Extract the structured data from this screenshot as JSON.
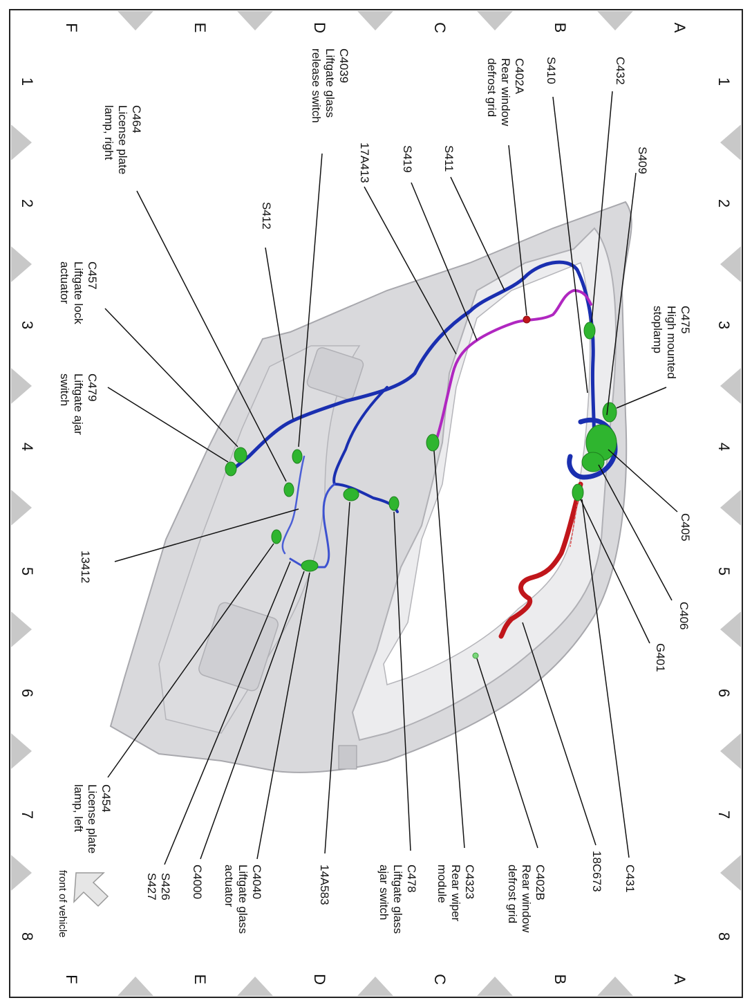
{
  "grid": {
    "columns": [
      "1",
      "2",
      "3",
      "4",
      "5",
      "6",
      "7",
      "8"
    ],
    "rows": [
      "A",
      "B",
      "C",
      "D",
      "E",
      "F"
    ]
  },
  "labels": {
    "c432": "C432",
    "s409": "S409",
    "s410": "S410",
    "c402a": [
      "C402A",
      "Rear window",
      "defrost grid"
    ],
    "s411": "S411",
    "s419": "S419",
    "17a413": "17A413",
    "c4039": [
      "C4039",
      "Liftgate glass",
      "release switch"
    ],
    "s412": "S412",
    "c464": [
      "C464",
      "License plate",
      "lamp, right"
    ],
    "c457": [
      "C457",
      "Liftgate lock",
      "actuator"
    ],
    "c479": [
      "C479",
      "Liftgate ajar",
      "switch"
    ],
    "13412": "13412",
    "c475": [
      "C475",
      "High mounted",
      "stoplamp"
    ],
    "c405": "C405",
    "c406": "C406",
    "g401": "G401",
    "c431": "C431",
    "18c673": "18C673",
    "c402b": [
      "C402B",
      "Rear window",
      "defrost grid"
    ],
    "c4323": [
      "C4323",
      "Rear wiper",
      "module"
    ],
    "c478": [
      "C478",
      "Liftgate glass",
      "ajar switch"
    ],
    "14a583": "14A583",
    "c4040": [
      "C4040",
      "Liftgate glass",
      "actuator"
    ],
    "c4000": "C4000",
    "s426_s427": [
      "S426",
      "S427"
    ],
    "c454": [
      "C454",
      "License plate",
      "lamp, left"
    ],
    "front_of_vehicle": "front of vehicle"
  },
  "colors": {
    "harness_main": "#1a2fb0",
    "harness_light": "#4b5fd6",
    "harness_purple": "#b027c0",
    "harness_red": "#c0161b",
    "connector": "#2fb52f",
    "liftgate_panel": "#d9d9dc",
    "border_triangle": "#c8c8c8"
  }
}
